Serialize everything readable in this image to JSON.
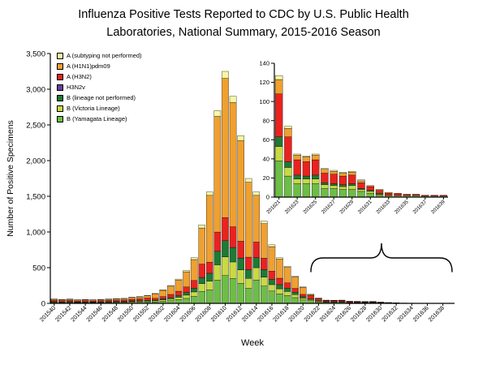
{
  "title": {
    "line1": "Influenza Positive Tests Reported to CDC by U.S. Public Health",
    "line2": "Laboratories, National Summary, 2015-2016 Season"
  },
  "axes": {
    "y_label": "Number of Positive  Specimens",
    "x_label": "Week"
  },
  "chart_data": {
    "type": "bar",
    "stacked": true,
    "title": "Influenza Positive Tests Reported to CDC by U.S. Public Health Laboratories, National Summary, 2015-2016 Season",
    "xlabel": "Week",
    "ylabel": "Number of Positive Specimens",
    "ylim": [
      0,
      3500
    ],
    "ytick_step": 500,
    "xtick_every": 2,
    "grid": false,
    "legend_position": "top-left-inside",
    "stack_order": "reverse of series list: B (Yamagata) at bottom, A (subtyping not performed) on top",
    "categories": [
      "201540",
      "201541",
      "201542",
      "201543",
      "201544",
      "201545",
      "201546",
      "201547",
      "201548",
      "201549",
      "201550",
      "201551",
      "201552",
      "201601",
      "201602",
      "201603",
      "201604",
      "201605",
      "201606",
      "201607",
      "201608",
      "201609",
      "201610",
      "201611",
      "201612",
      "201613",
      "201614",
      "201615",
      "201616",
      "201617",
      "201618",
      "201619",
      "201620",
      "201621",
      "201622",
      "201623",
      "201624",
      "201625",
      "201626",
      "201627",
      "201628",
      "201629",
      "201630",
      "201631",
      "201632",
      "201633",
      "201634",
      "201635",
      "201636",
      "201637",
      "201638",
      "201639"
    ],
    "series": [
      {
        "key": "a-unsubtyped",
        "name": "A (subtyping not performed)",
        "color": "#F7F7A6",
        "values": [
          3,
          3,
          3,
          2,
          3,
          2,
          3,
          3,
          3,
          4,
          4,
          5,
          5,
          6,
          8,
          10,
          14,
          18,
          26,
          44,
          47,
          81,
          98,
          87,
          70,
          53,
          47,
          34,
          25,
          19,
          16,
          11,
          7,
          4,
          2,
          1,
          1,
          1,
          1,
          1,
          1,
          1,
          1,
          0,
          0,
          0,
          0,
          0,
          0,
          0,
          0,
          0
        ]
      },
      {
        "key": "a-h1n1",
        "name": "A (H1N1)pdm09",
        "color": "#EFA02F",
        "values": [
          17,
          15,
          17,
          14,
          15,
          14,
          15,
          17,
          18,
          20,
          24,
          27,
          31,
          64,
          87,
          115,
          156,
          212,
          294,
          506,
          936,
          1620,
          1950,
          1740,
          1410,
          1050,
          655,
          483,
          344,
          269,
          218,
          160,
          97,
          15,
          9,
          5,
          5,
          5,
          4,
          3,
          3,
          3,
          2,
          1,
          1,
          1,
          0,
          0,
          0,
          0,
          0,
          0
        ]
      },
      {
        "key": "a-h3n2",
        "name": "A (H3N2)",
        "color": "#E8231F",
        "values": [
          16,
          15,
          16,
          14,
          15,
          14,
          15,
          16,
          18,
          19,
          23,
          25,
          30,
          24,
          32,
          43,
          58,
          78,
          109,
          187,
          156,
          270,
          325,
          290,
          235,
          175,
          218,
          161,
          115,
          90,
          73,
          53,
          32,
          45,
          26,
          16,
          15,
          16,
          10,
          10,
          9,
          9,
          6,
          4,
          3,
          2,
          2,
          1,
          1,
          1,
          1,
          1
        ]
      },
      {
        "key": "h3n2v",
        "name": "H3N2v",
        "color": "#6A3D9A",
        "values": [
          0,
          0,
          0,
          0,
          0,
          0,
          0,
          0,
          0,
          0,
          0,
          0,
          0,
          0,
          0,
          0,
          0,
          0,
          0,
          0,
          0,
          0,
          0,
          0,
          0,
          0,
          0,
          0,
          0,
          0,
          0,
          0,
          0,
          0,
          0,
          0,
          0,
          0,
          0,
          0,
          0,
          0,
          0,
          0,
          0,
          0,
          0,
          0,
          0,
          0,
          0,
          0
        ]
      },
      {
        "key": "b-no-lineage",
        "name": "B (lineage not performed)",
        "color": "#1E7A34",
        "values": [
          6,
          5,
          6,
          5,
          5,
          5,
          5,
          6,
          6,
          7,
          8,
          9,
          11,
          11,
          15,
          20,
          27,
          37,
          51,
          88,
          109,
          189,
          227,
          203,
          165,
          122,
          140,
          104,
          74,
          58,
          47,
          34,
          21,
          10,
          6,
          4,
          3,
          4,
          2,
          2,
          2,
          2,
          1,
          1,
          1,
          0,
          0,
          0,
          0,
          0,
          0,
          0
        ]
      },
      {
        "key": "b-victoria",
        "name": "B (Victoria Lineage)",
        "color": "#C8D944",
        "values": [
          6,
          6,
          6,
          5,
          6,
          5,
          6,
          6,
          7,
          7,
          9,
          10,
          11,
          14,
          19,
          25,
          34,
          46,
          64,
          110,
          125,
          216,
          260,
          232,
          188,
          140,
          172,
          126,
          90,
          70,
          57,
          42,
          25,
          15,
          9,
          5,
          5,
          5,
          4,
          3,
          3,
          4,
          2,
          2,
          1,
          1,
          1,
          1,
          1,
          0,
          0,
          0
        ]
      },
      {
        "key": "b-yamagata",
        "name": "B (Yamagata Lineage)",
        "color": "#6CBE45",
        "values": [
          12,
          11,
          12,
          10,
          11,
          10,
          11,
          12,
          13,
          13,
          17,
          19,
          22,
          21,
          29,
          37,
          51,
          69,
          96,
          165,
          187,
          324,
          390,
          348,
          282,
          210,
          328,
          242,
          172,
          134,
          109,
          80,
          48,
          38,
          22,
          14,
          14,
          14,
          9,
          9,
          8,
          8,
          6,
          4,
          2,
          1,
          1,
          1,
          1,
          1,
          1,
          1
        ]
      }
    ],
    "inset": {
      "start_week": "201621",
      "ylim": [
        0,
        140
      ],
      "ytick_step": 20,
      "xtick_every": 2
    }
  }
}
